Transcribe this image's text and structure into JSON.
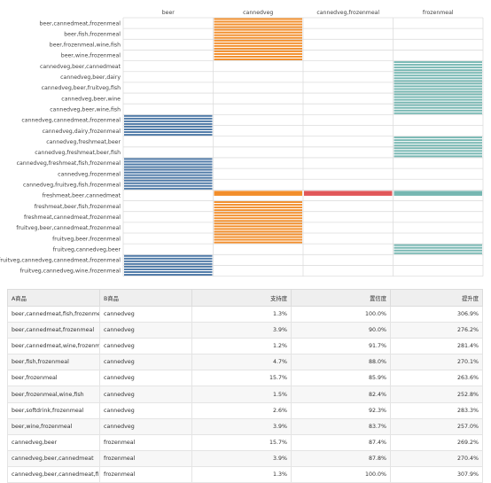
{
  "chart_data": {
    "type": "heatmap",
    "columns": [
      "beer",
      "cannedveg",
      "cannedveg,frozenmeal",
      "frozenmeal"
    ],
    "column_colors": [
      "#4e79a7",
      "#f28e2b",
      "#e15759",
      "#76b7b2"
    ],
    "rows": [
      "beer,cannedmeat,frozenmeal",
      "beer,fish,frozenmeal",
      "beer,frozenmeal,wine,fish",
      "beer,wine,frozenmeal",
      "cannedveg,beer,cannedmeat",
      "cannedveg,beer,dairy",
      "cannedveg,beer,fruitveg,fish",
      "cannedveg,beer,wine",
      "cannedveg,beer,wine,fish",
      "cannedveg,cannedmeat,frozenmeal",
      "cannedveg,dairy,frozenmeal",
      "cannedveg,freshmeat,beer",
      "cannedveg,freshmeat,beer,fish",
      "cannedveg,freshmeat,fish,frozenmeal",
      "cannedveg,frozenmeal",
      "cannedveg,fruitveg,fish,frozenmeal",
      "freshmeat,beer,cannedmeat",
      "freshmeat,beer,fish,frozenmeal",
      "freshmeat,cannedmeat,frozenmeal",
      "fruitveg,beer,cannedmeat,frozenmeal",
      "fruitveg,beer,frozenmeal",
      "fruitveg,cannedveg,beer",
      "fruitveg,cannedveg,cannedmeat,frozenmeal",
      "fruitveg,cannedveg,wine,frozenmeal"
    ],
    "row_groups": [
      {
        "cells": [
          0,
          1,
          0,
          0
        ],
        "sub": 4
      },
      {
        "cells": [
          0,
          1,
          0,
          0
        ],
        "sub": 4
      },
      {
        "cells": [
          0,
          1,
          0,
          0
        ],
        "sub": 4
      },
      {
        "cells": [
          0,
          1,
          0,
          0
        ],
        "sub": 4
      },
      {
        "cells": [
          0,
          0,
          0,
          1
        ],
        "sub": 4
      },
      {
        "cells": [
          0,
          0,
          0,
          1
        ],
        "sub": 4
      },
      {
        "cells": [
          0,
          0,
          0,
          1
        ],
        "sub": 4
      },
      {
        "cells": [
          0,
          0,
          0,
          1
        ],
        "sub": 4
      },
      {
        "cells": [
          0,
          0,
          0,
          1
        ],
        "sub": 4
      },
      {
        "cells": [
          1,
          0,
          0,
          0
        ],
        "sub": 4
      },
      {
        "cells": [
          1,
          0,
          0,
          0
        ],
        "sub": 4
      },
      {
        "cells": [
          0,
          0,
          0,
          1
        ],
        "sub": 4
      },
      {
        "cells": [
          0,
          0,
          0,
          1
        ],
        "sub": 4
      },
      {
        "cells": [
          1,
          0,
          0,
          0
        ],
        "sub": 4
      },
      {
        "cells": [
          1,
          0,
          0,
          0
        ],
        "sub": 4
      },
      {
        "cells": [
          1,
          0,
          0,
          0
        ],
        "sub": 4
      },
      {
        "cells": [
          0,
          1,
          1,
          1
        ],
        "sub": 1
      },
      {
        "cells": [
          0,
          1,
          0,
          0
        ],
        "sub": 4
      },
      {
        "cells": [
          0,
          1,
          0,
          0
        ],
        "sub": 4
      },
      {
        "cells": [
          0,
          1,
          0,
          0
        ],
        "sub": 4
      },
      {
        "cells": [
          0,
          1,
          0,
          0
        ],
        "sub": 4
      },
      {
        "cells": [
          0,
          0,
          0,
          1
        ],
        "sub": 4
      },
      {
        "cells": [
          1,
          0,
          0,
          0
        ],
        "sub": 4
      },
      {
        "cells": [
          1,
          0,
          0,
          0
        ],
        "sub": 4
      }
    ]
  },
  "table": {
    "headers": [
      "A商品",
      "B商品",
      "支持度",
      "置信度",
      "提升度"
    ],
    "rows": [
      [
        "beer,cannedmeat,fish,frozenmeal",
        "cannedveg",
        "1.3%",
        "100.0%",
        "306.9%"
      ],
      [
        "beer,cannedmeat,frozenmeal",
        "cannedveg",
        "3.9%",
        "90.0%",
        "276.2%"
      ],
      [
        "beer,cannedmeat,wine,frozenmeal",
        "cannedveg",
        "1.2%",
        "91.7%",
        "281.4%"
      ],
      [
        "beer,fish,frozenmeal",
        "cannedveg",
        "4.7%",
        "88.0%",
        "270.1%"
      ],
      [
        "beer,frozenmeal",
        "cannedveg",
        "15.7%",
        "85.9%",
        "263.6%"
      ],
      [
        "beer,frozenmeal,wine,fish",
        "cannedveg",
        "1.5%",
        "82.4%",
        "252.8%"
      ],
      [
        "beer,softdrink,frozenmeal",
        "cannedveg",
        "2.6%",
        "92.3%",
        "283.3%"
      ],
      [
        "beer,wine,frozenmeal",
        "cannedveg",
        "3.9%",
        "83.7%",
        "257.0%"
      ],
      [
        "cannedveg,beer",
        "frozenmeal",
        "15.7%",
        "87.4%",
        "269.2%"
      ],
      [
        "cannedveg,beer,cannedmeat",
        "frozenmeal",
        "3.9%",
        "87.8%",
        "270.4%"
      ],
      [
        "cannedveg,beer,cannedmeat,fish",
        "frozenmeal",
        "1.3%",
        "100.0%",
        "307.9%"
      ]
    ]
  }
}
